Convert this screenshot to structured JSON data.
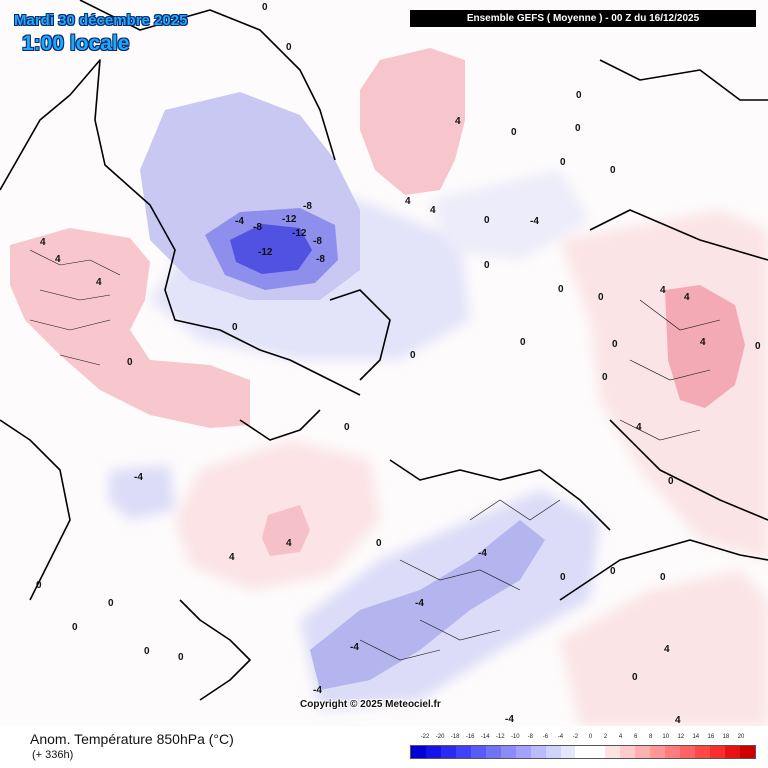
{
  "header": {
    "date": "Mardi 30 décembre 2025",
    "local_time": "1:00 locale",
    "run": "Ensemble GEFS  ( Moyenne )  -  00 Z du 16/12/2025"
  },
  "map": {
    "copyright": "Copyright © 2025 Meteociel.fr",
    "contour_labels": [
      "0",
      "4",
      "-4",
      "-8",
      "-12"
    ]
  },
  "footer": {
    "parameter": "Anom. Température 850hPa (°C)",
    "lead_time": "(+ 336h)"
  },
  "legend": {
    "labels": [
      "-22",
      "-20",
      "-18",
      "-16",
      "-14",
      "-12",
      "-10",
      "-8",
      "-6",
      "-4",
      "-2",
      "0",
      "2",
      "4",
      "6",
      "8",
      "10",
      "12",
      "14",
      "16",
      "18",
      "20"
    ],
    "colors": [
      "#0000d8",
      "#1414e6",
      "#2a2af0",
      "#4040f4",
      "#5a5af6",
      "#7272f8",
      "#8a8afa",
      "#a2a2fc",
      "#babafd",
      "#d2d2fe",
      "#e6e6ff",
      "#ffffff",
      "#ffffff",
      "#ffe2e2",
      "#ffcaca",
      "#ffb0b0",
      "#ff9696",
      "#ff7c7c",
      "#ff6262",
      "#ff4848",
      "#f82e2e",
      "#e81414",
      "#d00000"
    ]
  }
}
